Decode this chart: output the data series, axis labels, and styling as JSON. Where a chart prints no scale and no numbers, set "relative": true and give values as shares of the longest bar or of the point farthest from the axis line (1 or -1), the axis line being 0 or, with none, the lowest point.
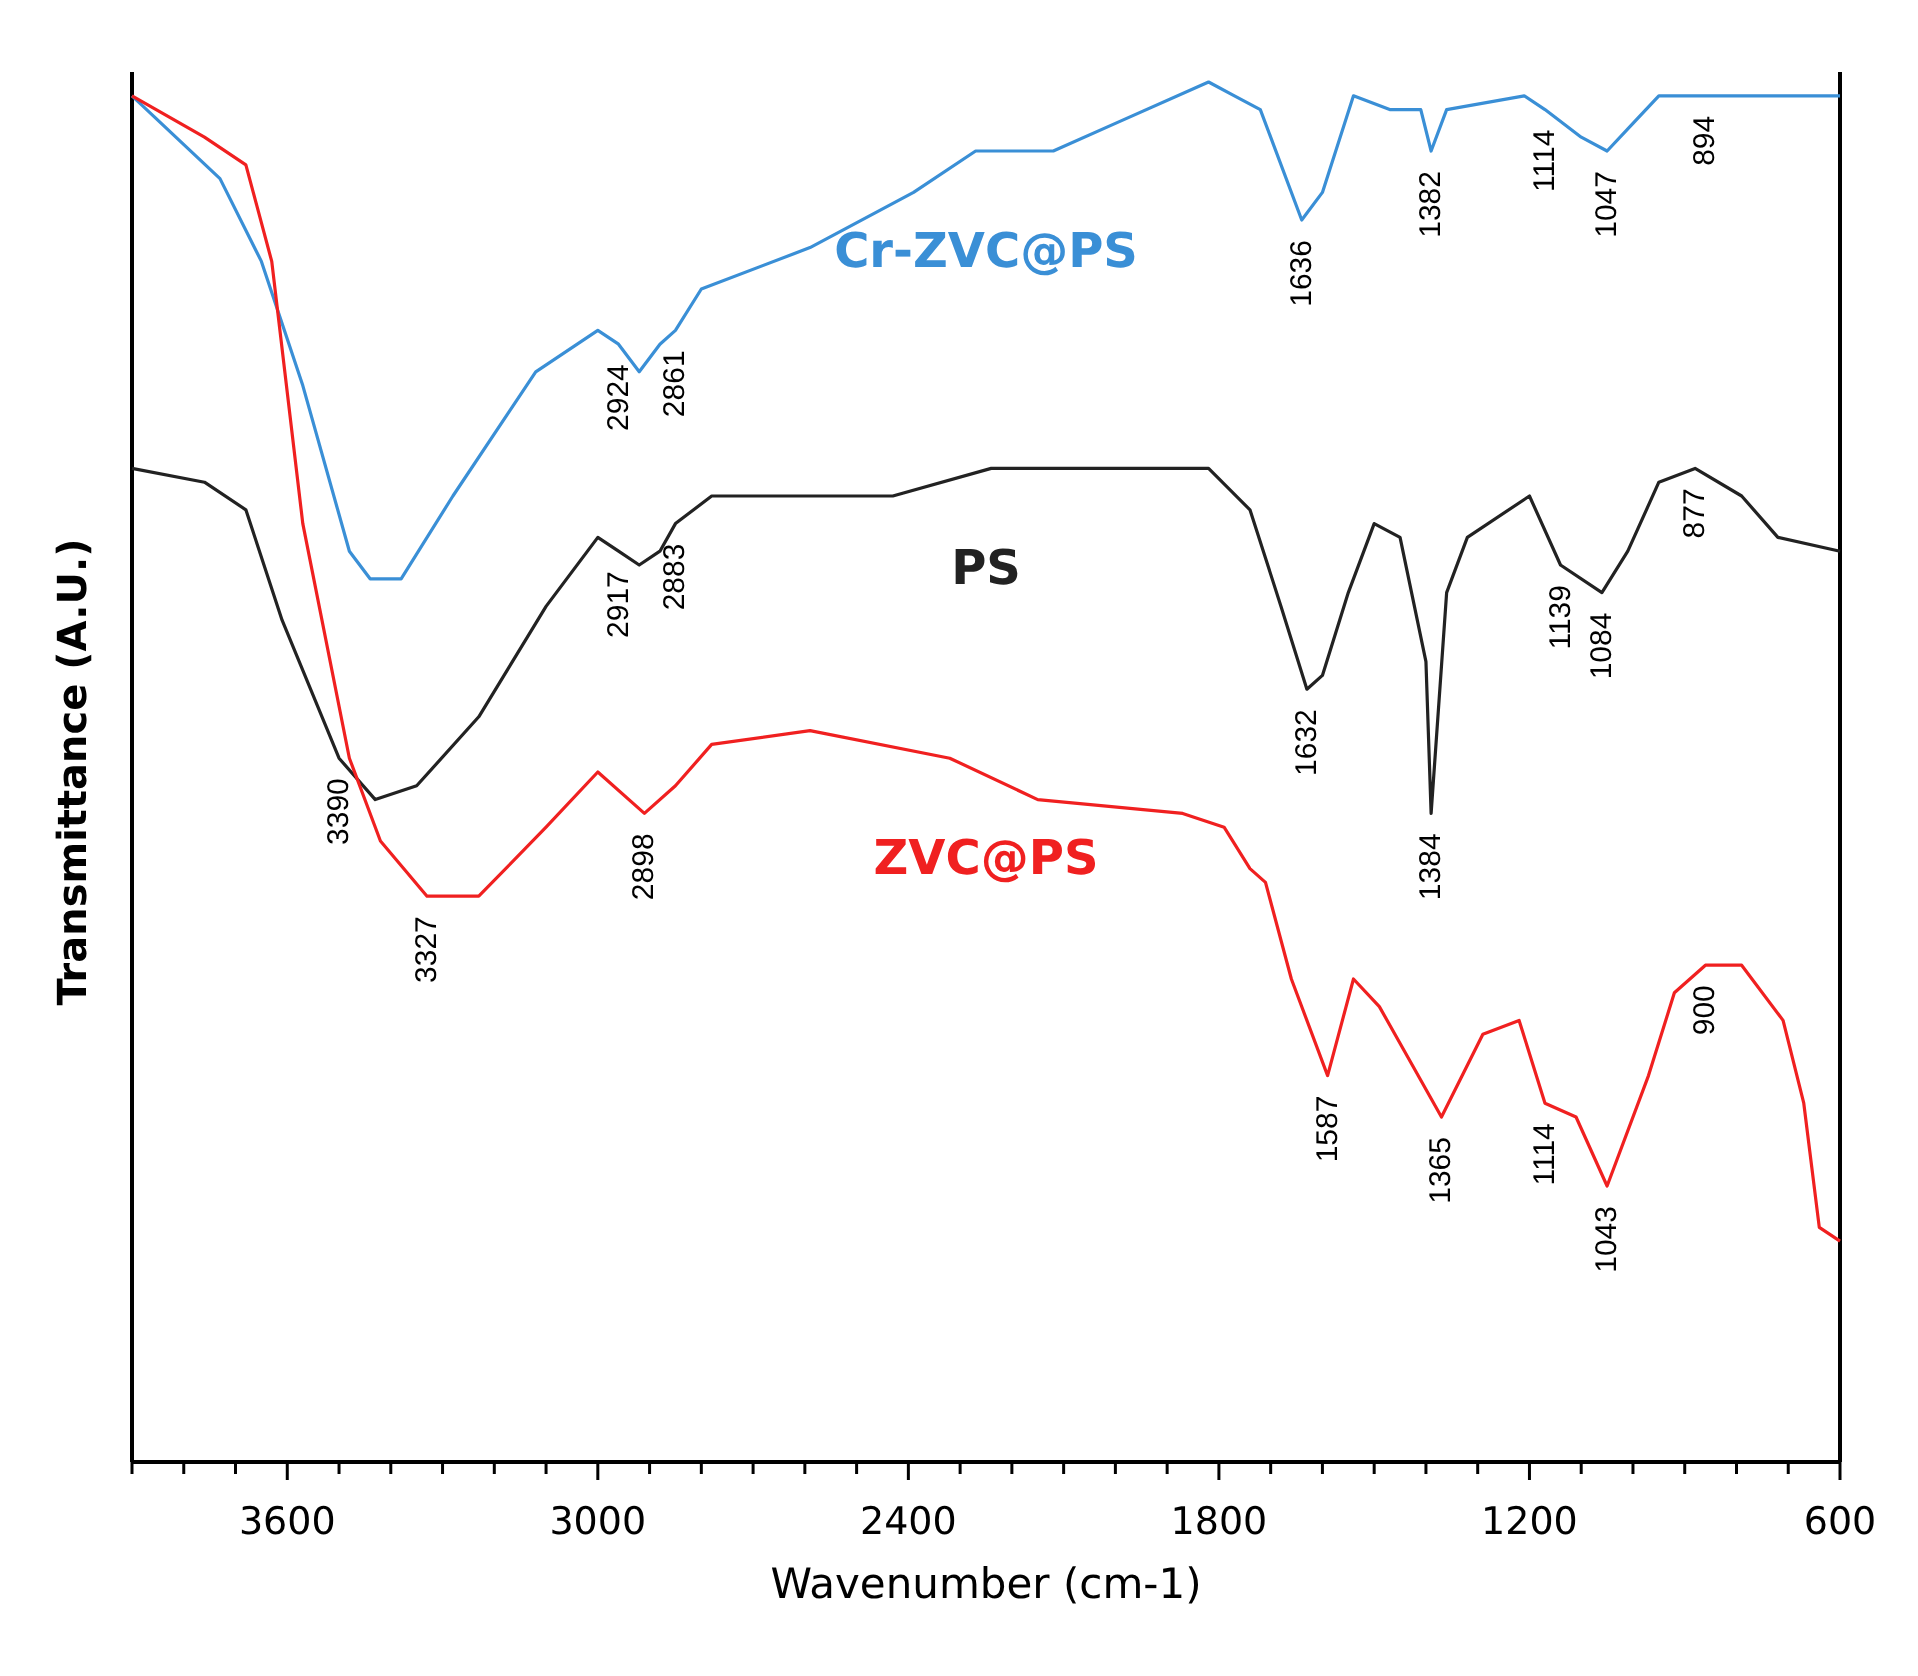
{
  "chart_data": {
    "type": "line",
    "relative": true,
    "xlabel": "Wavenumber (cm-1)",
    "ylabel": "Transmittance (A.U.)",
    "xlim": [
      3900,
      600
    ],
    "xticks": [
      {
        "value": 3900,
        "label": null
      },
      {
        "value": 3800,
        "label": null
      },
      {
        "value": 3700,
        "label": null
      },
      3600,
      {
        "value": 3500,
        "label": null
      },
      {
        "value": 3400,
        "label": null
      },
      {
        "value": 3300,
        "label": null
      },
      {
        "value": 3200,
        "label": null
      },
      {
        "value": 3100,
        "label": null
      },
      3000,
      {
        "value": 2900,
        "label": null
      },
      {
        "value": 2800,
        "label": null
      },
      {
        "value": 2700,
        "label": null
      },
      {
        "value": 2600,
        "label": null
      },
      {
        "value": 2500,
        "label": null
      },
      2400,
      {
        "value": 2300,
        "label": null
      },
      {
        "value": 2200,
        "label": null
      },
      {
        "value": 2100,
        "label": null
      },
      {
        "value": 2000,
        "label": null
      },
      {
        "value": 1900,
        "label": null
      },
      1800,
      {
        "value": 1700,
        "label": null
      },
      {
        "value": 1600,
        "label": null
      },
      {
        "value": 1500,
        "label": null
      },
      {
        "value": 1400,
        "label": null
      },
      {
        "value": 1300,
        "label": null
      },
      1200,
      {
        "value": 1100,
        "label": null
      },
      {
        "value": 1000,
        "label": null
      },
      {
        "value": 900,
        "label": null
      },
      {
        "value": 800,
        "label": null
      },
      {
        "value": 700,
        "label": null
      },
      600
    ],
    "grid": false,
    "legend": false,
    "line_style": "solid",
    "marker": "none",
    "series": [
      {
        "name": "Cr-ZVC@PS",
        "color": "#3a8fd6",
        "x": [
          3900,
          3730,
          3650,
          3570,
          3480,
          3440,
          3380,
          3280,
          3120,
          3000,
          2960,
          2920,
          2880,
          2850,
          2800,
          2590,
          2390,
          2270,
          2120,
          2000,
          1820,
          1770,
          1720,
          1640,
          1600,
          1540,
          1470,
          1410,
          1390,
          1360,
          1210,
          1170,
          1100,
          1050,
          1000,
          950,
          860,
          720,
          600
        ],
        "values": [
          0.99,
          0.93,
          0.87,
          0.78,
          0.66,
          0.64,
          0.64,
          0.7,
          0.79,
          0.82,
          0.81,
          0.79,
          0.81,
          0.82,
          0.85,
          0.88,
          0.92,
          0.95,
          0.95,
          0.97,
          1,
          0.99,
          0.98,
          0.9,
          0.92,
          0.99,
          0.98,
          0.98,
          0.95,
          0.98,
          0.99,
          0.98,
          0.96,
          0.95,
          0.97,
          0.99,
          0.99,
          0.99,
          0.99
        ]
      },
      {
        "name": "PS",
        "color": "#222222",
        "x": [
          3900,
          3760,
          3680,
          3610,
          3500,
          3430,
          3350,
          3230,
          3100,
          3000,
          2960,
          2920,
          2880,
          2850,
          2780,
          2430,
          2240,
          1820,
          1740,
          1680,
          1630,
          1600,
          1550,
          1500,
          1450,
          1400,
          1390,
          1360,
          1320,
          1200,
          1140,
          1060,
          1010,
          950,
          880,
          790,
          720,
          600
        ],
        "values": [
          0.72,
          0.71,
          0.69,
          0.61,
          0.51,
          0.48,
          0.49,
          0.54,
          0.62,
          0.67,
          0.66,
          0.65,
          0.66,
          0.68,
          0.7,
          0.7,
          0.72,
          0.72,
          0.69,
          0.62,
          0.56,
          0.57,
          0.63,
          0.68,
          0.67,
          0.58,
          0.47,
          0.63,
          0.67,
          0.7,
          0.65,
          0.63,
          0.66,
          0.71,
          0.72,
          0.7,
          0.67,
          0.66
        ]
      },
      {
        "name": "ZVC@PS",
        "color": "#f02020",
        "x": [
          3900,
          3760,
          3680,
          3630,
          3570,
          3480,
          3420,
          3330,
          3230,
          3100,
          3000,
          2910,
          2850,
          2780,
          2590,
          2320,
          2150,
          1870,
          1790,
          1740,
          1710,
          1660,
          1590,
          1540,
          1490,
          1430,
          1370,
          1290,
          1220,
          1170,
          1110,
          1050,
          970,
          920,
          860,
          790,
          710,
          670,
          640,
          600
        ],
        "values": [
          0.99,
          0.96,
          0.94,
          0.87,
          0.68,
          0.51,
          0.45,
          0.41,
          0.41,
          0.46,
          0.5,
          0.47,
          0.49,
          0.52,
          0.53,
          0.51,
          0.48,
          0.47,
          0.46,
          0.43,
          0.42,
          0.35,
          0.28,
          0.35,
          0.33,
          0.29,
          0.25,
          0.31,
          0.32,
          0.26,
          0.25,
          0.2,
          0.28,
          0.34,
          0.36,
          0.36,
          0.32,
          0.26,
          0.17,
          0.16
        ]
      }
    ],
    "annotations": [
      {
        "text": "2924",
        "x": 2960,
        "y": 0.81
      },
      {
        "text": "2861",
        "x": 2850,
        "y": 0.82
      },
      {
        "text": "1636",
        "x": 1640,
        "y": 0.9
      },
      {
        "text": "1382",
        "x": 1390,
        "y": 0.95
      },
      {
        "text": "1114",
        "x": 1170,
        "y": 0.98
      },
      {
        "text": "1047",
        "x": 1050,
        "y": 0.95
      },
      {
        "text": "894",
        "x": 860,
        "y": 0.99
      },
      {
        "text": "2917",
        "x": 2960,
        "y": 0.66
      },
      {
        "text": "2883",
        "x": 2850,
        "y": 0.68
      },
      {
        "text": "3390",
        "x": 3500,
        "y": 0.51
      },
      {
        "text": "1632",
        "x": 1630,
        "y": 0.56
      },
      {
        "text": "1384",
        "x": 1390,
        "y": 0.47
      },
      {
        "text": "1139",
        "x": 1140,
        "y": 0.65
      },
      {
        "text": "1084",
        "x": 1060,
        "y": 0.63
      },
      {
        "text": "877",
        "x": 880,
        "y": 0.72
      },
      {
        "text": "3327",
        "x": 3330,
        "y": 0.41
      },
      {
        "text": "2898",
        "x": 2910,
        "y": 0.47
      },
      {
        "text": "1587",
        "x": 1590,
        "y": 0.28
      },
      {
        "text": "1365",
        "x": 1370,
        "y": 0.25
      },
      {
        "text": "1114",
        "x": 1170,
        "y": 0.26
      },
      {
        "text": "1043",
        "x": 1050,
        "y": 0.2
      },
      {
        "text": "900",
        "x": 860,
        "y": 0.36
      }
    ]
  }
}
